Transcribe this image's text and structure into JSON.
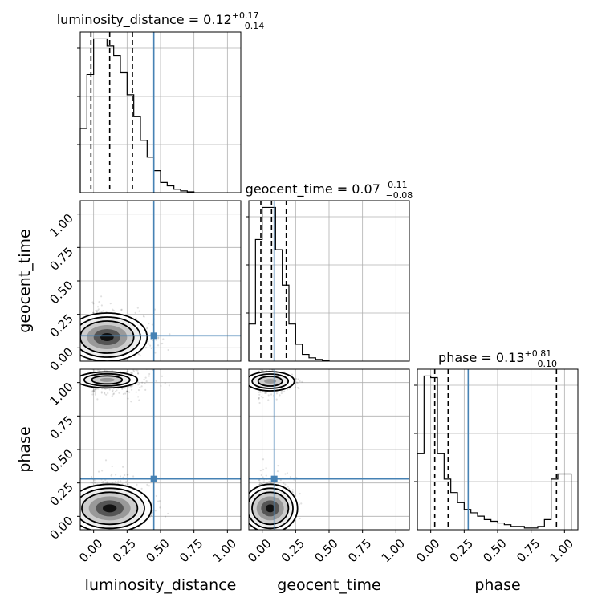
{
  "chart_data": {
    "type": "corner",
    "parameters": [
      "luminosity_distance",
      "geocent_time",
      "phase"
    ],
    "truths": [
      0.45,
      0.09,
      0.28
    ],
    "axis_range": [
      -0.1,
      1.1
    ],
    "ticks": [
      0.0,
      0.25,
      0.5,
      0.75,
      1.0
    ],
    "tick_labels": [
      "0.00",
      "0.25",
      "0.50",
      "0.75",
      "1.00"
    ],
    "grid": true,
    "titles": [
      {
        "name": "luminosity_distance = 0.12",
        "sup": "+0.17",
        "sub": "−0.14"
      },
      {
        "name": "geocent_time = 0.07",
        "sup": "+0.11",
        "sub": "−0.08"
      },
      {
        "name": "phase = 0.13",
        "sup": "+0.81",
        "sub": "−0.10"
      }
    ],
    "quantiles": [
      [
        -0.02,
        0.12,
        0.29
      ],
      [
        -0.01,
        0.07,
        0.18
      ],
      [
        0.03,
        0.13,
        0.94
      ]
    ],
    "histograms": [
      {
        "bin_edges": [
          -0.1,
          -0.05,
          0.0,
          0.05,
          0.1,
          0.15,
          0.2,
          0.25,
          0.3,
          0.35,
          0.4,
          0.45,
          0.5,
          0.55,
          0.6,
          0.65,
          0.7,
          0.75
        ],
        "counts": [
          0.38,
          0.7,
          0.91,
          0.91,
          0.87,
          0.81,
          0.71,
          0.58,
          0.45,
          0.31,
          0.21,
          0.13,
          0.06,
          0.04,
          0.02,
          0.01,
          0.005
        ]
      },
      {
        "bin_edges": [
          -0.1,
          -0.05,
          0.0,
          0.05,
          0.1,
          0.15,
          0.2,
          0.25,
          0.3,
          0.35,
          0.4,
          0.45,
          0.5
        ],
        "counts": [
          0.22,
          0.72,
          0.91,
          0.91,
          0.66,
          0.45,
          0.22,
          0.1,
          0.04,
          0.02,
          0.01,
          0.005
        ]
      },
      {
        "bin_edges": [
          -0.1,
          -0.05,
          0.0,
          0.05,
          0.1,
          0.15,
          0.2,
          0.25,
          0.3,
          0.35,
          0.4,
          0.45,
          0.5,
          0.55,
          0.6,
          0.65,
          0.7,
          0.75,
          0.8,
          0.85,
          0.9,
          0.95,
          1.0,
          1.05
        ],
        "counts": [
          0.45,
          0.91,
          0.9,
          0.45,
          0.3,
          0.22,
          0.16,
          0.12,
          0.1,
          0.08,
          0.06,
          0.05,
          0.04,
          0.03,
          0.02,
          0.02,
          0.01,
          0.01,
          0.02,
          0.06,
          0.3,
          0.33,
          0.33
        ]
      }
    ],
    "density_peaks": [
      {
        "panel": "geocent_time vs luminosity_distance",
        "x": 0.08,
        "y": 0.07
      },
      {
        "panel": "phase vs luminosity_distance",
        "x": 0.1,
        "y": 0.06
      },
      {
        "panel": "phase vs luminosity_distance",
        "x": 0.1,
        "y": 1.02
      },
      {
        "panel": "phase vs geocent_time",
        "x": 0.05,
        "y": 0.06
      },
      {
        "panel": "phase vs geocent_time",
        "x": 0.05,
        "y": 1.01
      }
    ],
    "colors": {
      "truth": "#4682b4",
      "histogram": "#000000",
      "quantile": "#000000",
      "contour": "#000000",
      "grid": "#b0b0b0"
    }
  }
}
